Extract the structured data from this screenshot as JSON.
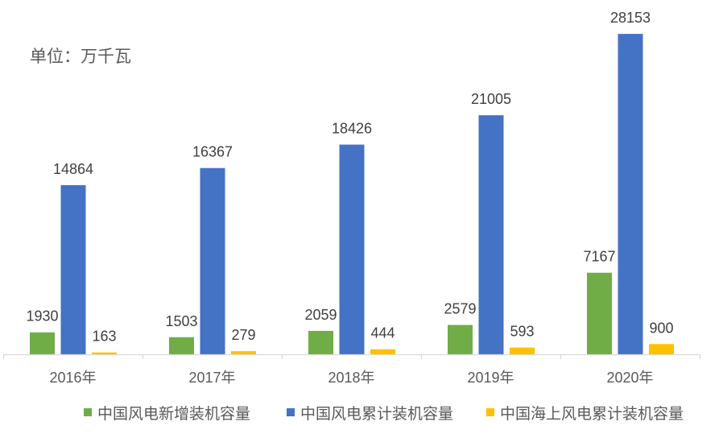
{
  "chart_data": {
    "type": "bar",
    "unit_label": "单位：万千瓦",
    "categories": [
      "2016年",
      "2017年",
      "2018年",
      "2019年",
      "2020年"
    ],
    "series": [
      {
        "name": "中国风电新增装机容量",
        "color": "#70AD47",
        "values": [
          1930,
          1503,
          2059,
          2579,
          7167
        ]
      },
      {
        "name": "中国风电累计装机容量",
        "color": "#4472C4",
        "values": [
          14864,
          16367,
          18426,
          21005,
          28153
        ]
      },
      {
        "name": "中国海上风电累计装机容量",
        "color": "#FFC000",
        "values": [
          163,
          279,
          444,
          593,
          900
        ]
      }
    ],
    "ylim": [
      0,
      30000
    ],
    "y_axis": "hidden",
    "grid": false,
    "data_labels": true,
    "legend": "bottom",
    "axis_color": "#D9D9D9"
  }
}
